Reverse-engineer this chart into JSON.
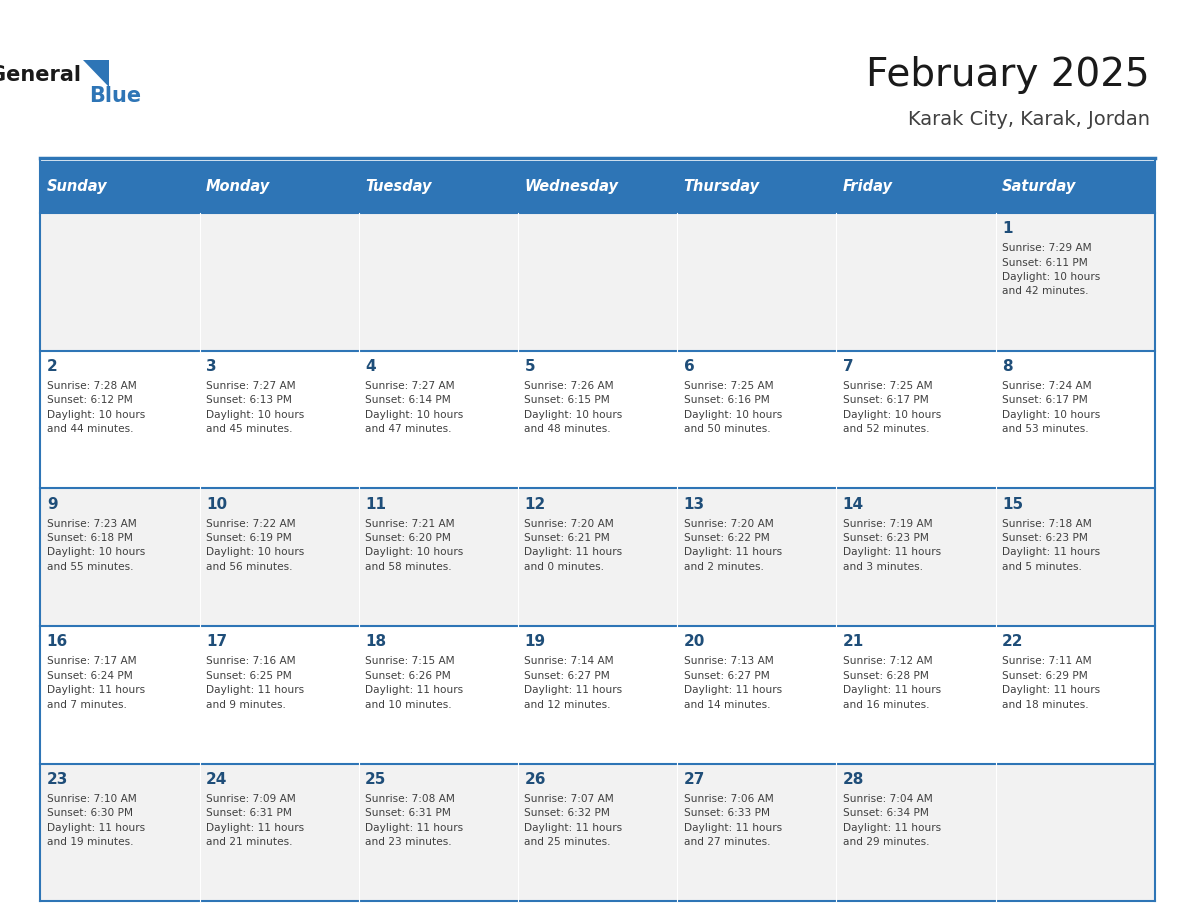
{
  "title": "February 2025",
  "subtitle": "Karak City, Karak, Jordan",
  "days_of_week": [
    "Sunday",
    "Monday",
    "Tuesday",
    "Wednesday",
    "Thursday",
    "Friday",
    "Saturday"
  ],
  "header_bg": "#2E75B6",
  "header_text": "#FFFFFF",
  "row_bg_odd": "#F2F2F2",
  "row_bg_even": "#FFFFFF",
  "border_color": "#2E75B6",
  "day_num_color": "#1F4E79",
  "info_color": "#404040",
  "title_color": "#1a1a1a",
  "subtitle_color": "#404040",
  "calendar": [
    [
      {
        "day": null
      },
      {
        "day": null
      },
      {
        "day": null
      },
      {
        "day": null
      },
      {
        "day": null
      },
      {
        "day": null
      },
      {
        "day": 1,
        "sunrise": "7:29 AM",
        "sunset": "6:11 PM",
        "daylight": "10 hours\nand 42 minutes."
      }
    ],
    [
      {
        "day": 2,
        "sunrise": "7:28 AM",
        "sunset": "6:12 PM",
        "daylight": "10 hours\nand 44 minutes."
      },
      {
        "day": 3,
        "sunrise": "7:27 AM",
        "sunset": "6:13 PM",
        "daylight": "10 hours\nand 45 minutes."
      },
      {
        "day": 4,
        "sunrise": "7:27 AM",
        "sunset": "6:14 PM",
        "daylight": "10 hours\nand 47 minutes."
      },
      {
        "day": 5,
        "sunrise": "7:26 AM",
        "sunset": "6:15 PM",
        "daylight": "10 hours\nand 48 minutes."
      },
      {
        "day": 6,
        "sunrise": "7:25 AM",
        "sunset": "6:16 PM",
        "daylight": "10 hours\nand 50 minutes."
      },
      {
        "day": 7,
        "sunrise": "7:25 AM",
        "sunset": "6:17 PM",
        "daylight": "10 hours\nand 52 minutes."
      },
      {
        "day": 8,
        "sunrise": "7:24 AM",
        "sunset": "6:17 PM",
        "daylight": "10 hours\nand 53 minutes."
      }
    ],
    [
      {
        "day": 9,
        "sunrise": "7:23 AM",
        "sunset": "6:18 PM",
        "daylight": "10 hours\nand 55 minutes."
      },
      {
        "day": 10,
        "sunrise": "7:22 AM",
        "sunset": "6:19 PM",
        "daylight": "10 hours\nand 56 minutes."
      },
      {
        "day": 11,
        "sunrise": "7:21 AM",
        "sunset": "6:20 PM",
        "daylight": "10 hours\nand 58 minutes."
      },
      {
        "day": 12,
        "sunrise": "7:20 AM",
        "sunset": "6:21 PM",
        "daylight": "11 hours\nand 0 minutes."
      },
      {
        "day": 13,
        "sunrise": "7:20 AM",
        "sunset": "6:22 PM",
        "daylight": "11 hours\nand 2 minutes."
      },
      {
        "day": 14,
        "sunrise": "7:19 AM",
        "sunset": "6:23 PM",
        "daylight": "11 hours\nand 3 minutes."
      },
      {
        "day": 15,
        "sunrise": "7:18 AM",
        "sunset": "6:23 PM",
        "daylight": "11 hours\nand 5 minutes."
      }
    ],
    [
      {
        "day": 16,
        "sunrise": "7:17 AM",
        "sunset": "6:24 PM",
        "daylight": "11 hours\nand 7 minutes."
      },
      {
        "day": 17,
        "sunrise": "7:16 AM",
        "sunset": "6:25 PM",
        "daylight": "11 hours\nand 9 minutes."
      },
      {
        "day": 18,
        "sunrise": "7:15 AM",
        "sunset": "6:26 PM",
        "daylight": "11 hours\nand 10 minutes."
      },
      {
        "day": 19,
        "sunrise": "7:14 AM",
        "sunset": "6:27 PM",
        "daylight": "11 hours\nand 12 minutes."
      },
      {
        "day": 20,
        "sunrise": "7:13 AM",
        "sunset": "6:27 PM",
        "daylight": "11 hours\nand 14 minutes."
      },
      {
        "day": 21,
        "sunrise": "7:12 AM",
        "sunset": "6:28 PM",
        "daylight": "11 hours\nand 16 minutes."
      },
      {
        "day": 22,
        "sunrise": "7:11 AM",
        "sunset": "6:29 PM",
        "daylight": "11 hours\nand 18 minutes."
      }
    ],
    [
      {
        "day": 23,
        "sunrise": "7:10 AM",
        "sunset": "6:30 PM",
        "daylight": "11 hours\nand 19 minutes."
      },
      {
        "day": 24,
        "sunrise": "7:09 AM",
        "sunset": "6:31 PM",
        "daylight": "11 hours\nand 21 minutes."
      },
      {
        "day": 25,
        "sunrise": "7:08 AM",
        "sunset": "6:31 PM",
        "daylight": "11 hours\nand 23 minutes."
      },
      {
        "day": 26,
        "sunrise": "7:07 AM",
        "sunset": "6:32 PM",
        "daylight": "11 hours\nand 25 minutes."
      },
      {
        "day": 27,
        "sunrise": "7:06 AM",
        "sunset": "6:33 PM",
        "daylight": "11 hours\nand 27 minutes."
      },
      {
        "day": 28,
        "sunrise": "7:04 AM",
        "sunset": "6:34 PM",
        "daylight": "11 hours\nand 29 minutes."
      },
      {
        "day": null
      }
    ]
  ]
}
